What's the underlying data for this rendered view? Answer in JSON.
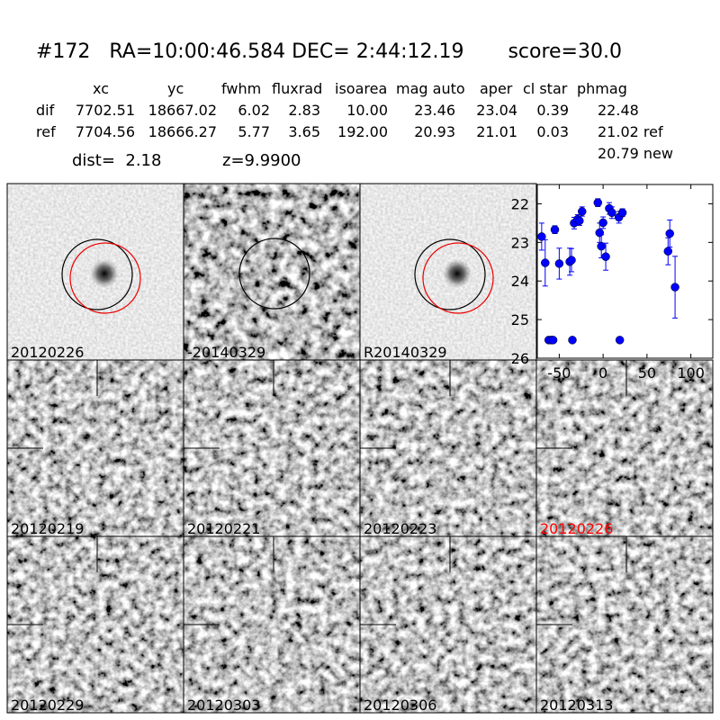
{
  "header": {
    "title": "#172   RA=10:00:46.584 DEC= 2:44:12.19       score=30.0"
  },
  "table": {
    "columns": [
      "xc",
      "yc",
      "fwhm",
      "fluxrad",
      "isoarea",
      "mag auto",
      "aper",
      "cl star",
      "phmag"
    ],
    "rows": [
      [
        "dif",
        "7702.51",
        "18667.02",
        "6.02",
        "2.83",
        "10.00",
        "23.46",
        "23.04",
        "0.39",
        "22.48"
      ],
      [
        "ref",
        "7704.56",
        "18666.27",
        "5.77",
        "3.65",
        "192.00",
        "20.93",
        "21.01",
        "0.03",
        "21.02 ref"
      ]
    ],
    "extra": "20.79 new"
  },
  "info": {
    "dist": "dist=  2.18",
    "z": "z=9.9900"
  },
  "panels": [
    {
      "label": "20120226"
    },
    {
      "label": "-20140329"
    },
    {
      "label": "R20140329"
    },
    {
      "label": "20120219"
    },
    {
      "label": "20120221"
    },
    {
      "label": "20120223"
    },
    {
      "label": "20120226",
      "label_color": "#ff0000"
    },
    {
      "label": "20120229"
    },
    {
      "label": "20120303"
    },
    {
      "label": "20120306"
    },
    {
      "label": "20120313"
    }
  ],
  "chart_data": {
    "type": "scatter",
    "color": "#0000ff",
    "x": [
      -70,
      -66,
      -62,
      -59,
      -57,
      -55,
      -50,
      -38,
      -36,
      -35,
      -33,
      -29,
      -27,
      -24,
      -6,
      -4,
      -2,
      0,
      3,
      7,
      10,
      18,
      19,
      22,
      74,
      76,
      82
    ],
    "values": [
      22.85,
      23.53,
      25.53,
      25.53,
      25.53,
      22.67,
      23.55,
      23.5,
      23.46,
      25.53,
      22.5,
      22.4,
      22.44,
      22.2,
      21.97,
      22.75,
      23.1,
      22.49,
      23.37,
      22.12,
      22.23,
      22.35,
      25.53,
      22.23,
      23.23,
      22.77,
      24.16
    ],
    "yerr": [
      0.35,
      0.6,
      0.05,
      0.05,
      0.05,
      0.1,
      0.4,
      0.35,
      0.3,
      0.05,
      0.15,
      0.12,
      0.12,
      0.12,
      0.1,
      0.25,
      0.3,
      0.15,
      0.35,
      0.15,
      0.15,
      0.15,
      0.05,
      0.1,
      0.35,
      0.35,
      0.8
    ],
    "xlim": [
      -75,
      125
    ],
    "ylim": [
      21.5,
      26
    ],
    "y_inverted": true,
    "xticks": [
      -50,
      0,
      50,
      100
    ],
    "yticks": [
      22,
      23,
      24,
      25,
      26
    ]
  }
}
